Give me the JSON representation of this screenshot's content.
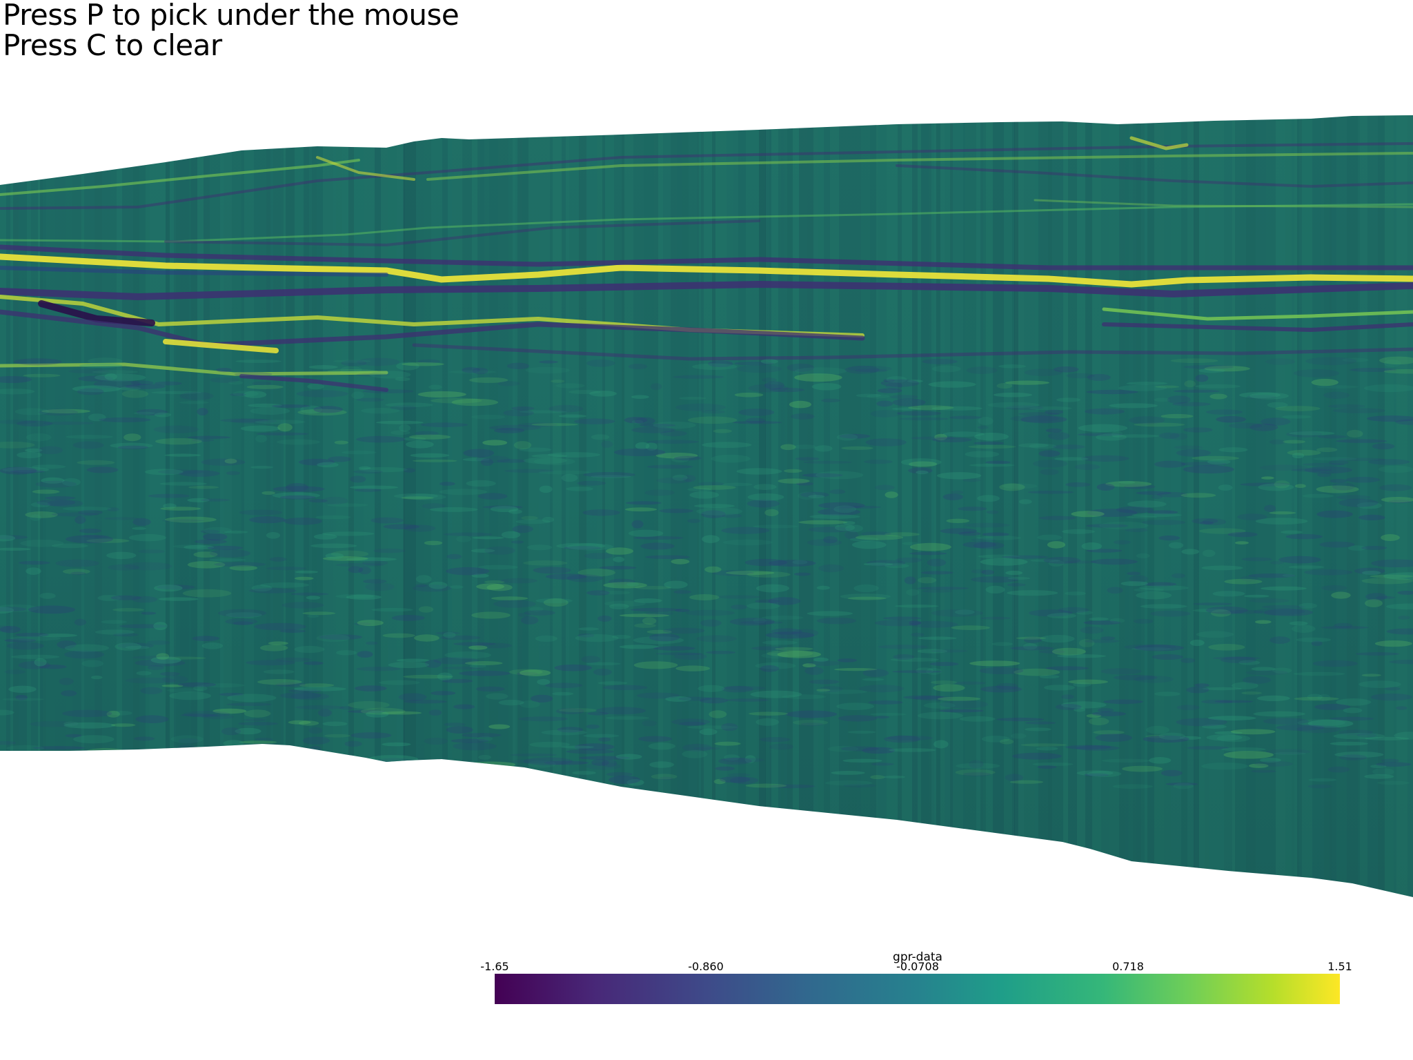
{
  "instructions": {
    "line1": "Press P to pick under the mouse",
    "line2": "Press C to clear"
  },
  "scalar_bar": {
    "title": "gpr-data",
    "ticks": [
      "-1.65",
      "-0.860",
      "-0.0708",
      "0.718",
      "1.51"
    ],
    "colormap": "viridis",
    "range": [
      -1.65,
      1.51
    ]
  },
  "colors": {
    "background": "#ffffff",
    "base_green": "#1b6b62",
    "reflector_bright": "#fde725",
    "reflector_dark": "#3b2f70"
  }
}
